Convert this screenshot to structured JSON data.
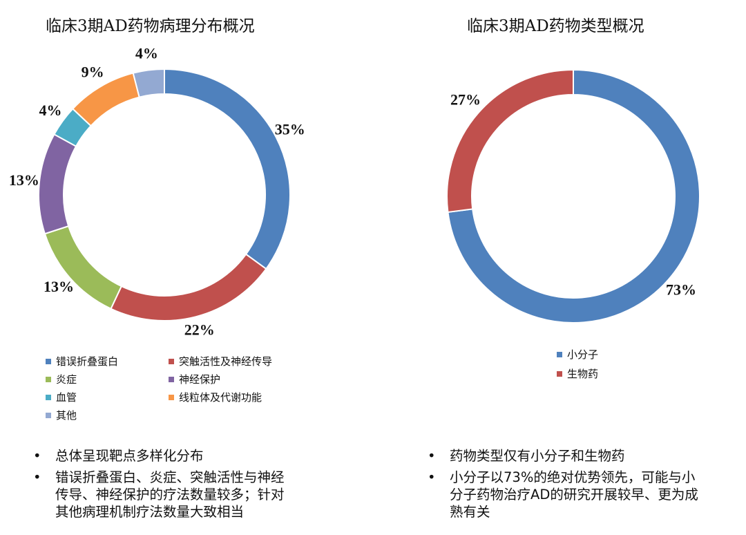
{
  "left": {
    "title": "临床3期AD药物病理分布概况",
    "chart_data": {
      "type": "pie",
      "title": "临床3期AD药物病理分布概况",
      "categories": [
        "错误折叠蛋白",
        "突触活性及神经传导",
        "炎症",
        "神经保护",
        "血管",
        "线粒体及代谢功能",
        "其他"
      ],
      "values": [
        35,
        22,
        13,
        13,
        4,
        9,
        4
      ],
      "labels": [
        "35%",
        "22%",
        "13%",
        "13%",
        "4%",
        "9%",
        "4%"
      ],
      "colors": [
        "#4f81bd",
        "#c0504d",
        "#9bbb59",
        "#8064a2",
        "#4bacc6",
        "#f79646",
        "#93a9d2"
      ],
      "legend_position": "bottom"
    },
    "notes": [
      "总体呈现靶点多样化分布",
      "错误折叠蛋白、炎症、突触活性与神经\n传导、神经保护的疗法数量较多；针对\n其他病理机制疗法数量大致相当"
    ]
  },
  "right": {
    "title": "临床3期AD药物类型概况",
    "chart_data": {
      "type": "pie",
      "title": "临床3期AD药物类型概况",
      "categories": [
        "小分子",
        "生物药"
      ],
      "values": [
        73,
        27
      ],
      "labels": [
        "73%",
        "27%"
      ],
      "colors": [
        "#4f81bd",
        "#c0504d"
      ],
      "legend_position": "bottom"
    },
    "notes": [
      "药物类型仅有小分子和生物药",
      "小分子以73%的绝对优势领先，可能与小\n分子药物治疗AD的研究开展较早、更为成\n熟有关"
    ]
  },
  "bullet_symbol": "•"
}
